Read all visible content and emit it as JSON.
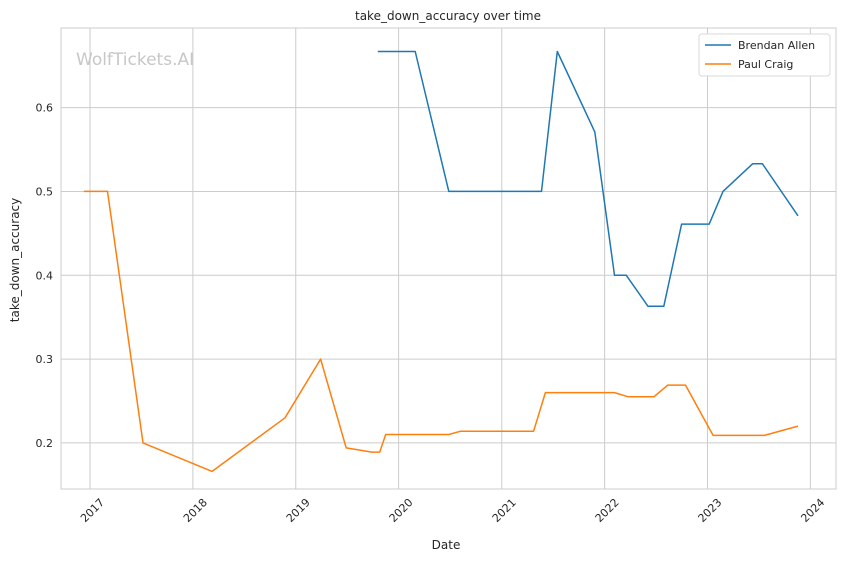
{
  "chart_data": {
    "type": "line",
    "title": "take_down_accuracy over time",
    "xlabel": "Date",
    "ylabel": "take_down_accuracy",
    "watermark": "WolfTickets.AI",
    "x_ticks": [
      "2017",
      "2018",
      "2019",
      "2020",
      "2021",
      "2022",
      "2023",
      "2024"
    ],
    "y_ticks": [
      "0.2",
      "0.3",
      "0.4",
      "0.5",
      "0.6"
    ],
    "ylim": [
      0.145,
      0.695
    ],
    "xlim": [
      "2016-09-20",
      "2024-04-01"
    ],
    "grid": true,
    "legend_position": "top-right",
    "colors": {
      "Brendan Allen": "#1f77b4",
      "Paul Craig": "#ff7f0e"
    },
    "series": [
      {
        "name": "Brendan Allen",
        "points": [
          [
            "2019-10-19",
            0.667
          ],
          [
            "2020-02-29",
            0.667
          ],
          [
            "2020-06-27",
            0.5
          ],
          [
            "2021-05-22",
            0.5
          ],
          [
            "2021-07-17",
            0.667
          ],
          [
            "2021-11-27",
            0.571
          ],
          [
            "2022-02-05",
            0.4
          ],
          [
            "2022-03-19",
            0.4
          ],
          [
            "2022-06-04",
            0.363
          ],
          [
            "2022-07-30",
            0.363
          ],
          [
            "2022-10-01",
            0.461
          ],
          [
            "2023-01-07",
            0.461
          ],
          [
            "2023-02-25",
            0.5
          ],
          [
            "2023-06-10",
            0.533
          ],
          [
            "2023-07-15",
            0.533
          ],
          [
            "2023-11-18",
            0.471
          ]
        ]
      },
      {
        "name": "Paul Craig",
        "points": [
          [
            "2016-12-10",
            0.5
          ],
          [
            "2017-03-04",
            0.5
          ],
          [
            "2017-07-08",
            0.2
          ],
          [
            "2018-03-10",
            0.166
          ],
          [
            "2018-11-24",
            0.23
          ],
          [
            "2019-03-30",
            0.3
          ],
          [
            "2019-06-29",
            0.194
          ],
          [
            "2019-09-28",
            0.189
          ],
          [
            "2019-10-26",
            0.189
          ],
          [
            "2019-11-16",
            0.21
          ],
          [
            "2020-06-27",
            0.21
          ],
          [
            "2020-08-08",
            0.214
          ],
          [
            "2021-04-24",
            0.214
          ],
          [
            "2021-06-05",
            0.26
          ],
          [
            "2022-02-05",
            0.26
          ],
          [
            "2022-03-26",
            0.255
          ],
          [
            "2022-06-25",
            0.255
          ],
          [
            "2022-08-13",
            0.269
          ],
          [
            "2022-10-15",
            0.269
          ],
          [
            "2023-01-21",
            0.209
          ],
          [
            "2023-07-22",
            0.209
          ],
          [
            "2023-11-18",
            0.22
          ]
        ]
      }
    ]
  }
}
